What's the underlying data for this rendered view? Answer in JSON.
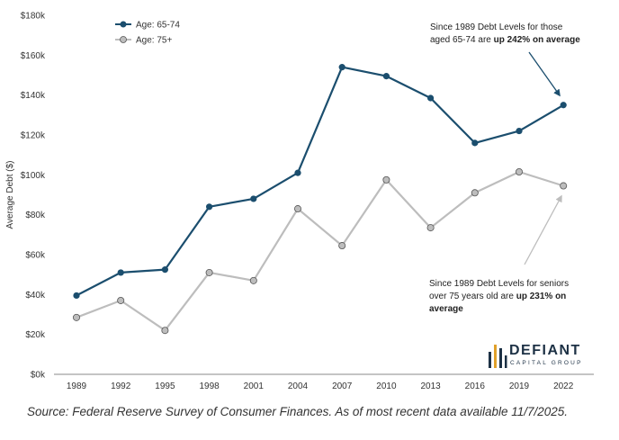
{
  "chart_data": {
    "type": "line",
    "ylabel": "Average Debt ($)",
    "xlabel": "",
    "categories": [
      "1989",
      "1992",
      "1995",
      "1998",
      "2001",
      "2004",
      "2007",
      "2010",
      "2013",
      "2016",
      "2019",
      "2022"
    ],
    "ylim": [
      0,
      180000
    ],
    "yticks": [
      {
        "value": 0,
        "label": "$0k"
      },
      {
        "value": 20000,
        "label": "$20k"
      },
      {
        "value": 40000,
        "label": "$40k"
      },
      {
        "value": 60000,
        "label": "$60k"
      },
      {
        "value": 80000,
        "label": "$80k"
      },
      {
        "value": 100000,
        "label": "$100k"
      },
      {
        "value": 120000,
        "label": "$120k"
      },
      {
        "value": 140000,
        "label": "$140k"
      },
      {
        "value": 160000,
        "label": "$160k"
      },
      {
        "value": 180000,
        "label": "$180k"
      }
    ],
    "grid": false,
    "legend_position": "top-left",
    "series": [
      {
        "name": "Age: 65-74",
        "color": "#1b4e6e",
        "values": [
          39500,
          51000,
          52500,
          84000,
          88000,
          101000,
          154000,
          149500,
          138500,
          116000,
          122000,
          135000
        ]
      },
      {
        "name": "Age: 75+",
        "color": "#bdbdbd",
        "values": [
          28500,
          37000,
          22000,
          51000,
          47000,
          83000,
          64500,
          97500,
          73500,
          91000,
          101500,
          94500
        ]
      }
    ],
    "annotations": [
      {
        "line1": "Since 1989 Debt Levels for those",
        "line2_prefix": "aged 65-74 are ",
        "line2_bold": "up 242% on average",
        "points_to_category": "2022",
        "points_to_series": 0
      },
      {
        "line1": "Since 1989 Debt Levels for seniors",
        "line2_prefix": "over 75 years old are ",
        "line2_bold": "up 231% on",
        "line3_bold": "average",
        "points_to_category": "2022",
        "points_to_series": 1
      }
    ]
  },
  "logo": {
    "title": "DEFIANT",
    "subtitle": "CAPITAL GROUP",
    "color": "#1d3145"
  },
  "source": "Source: Federal Reserve Survey of Consumer Finances. As of most recent data available 11/7/2025."
}
